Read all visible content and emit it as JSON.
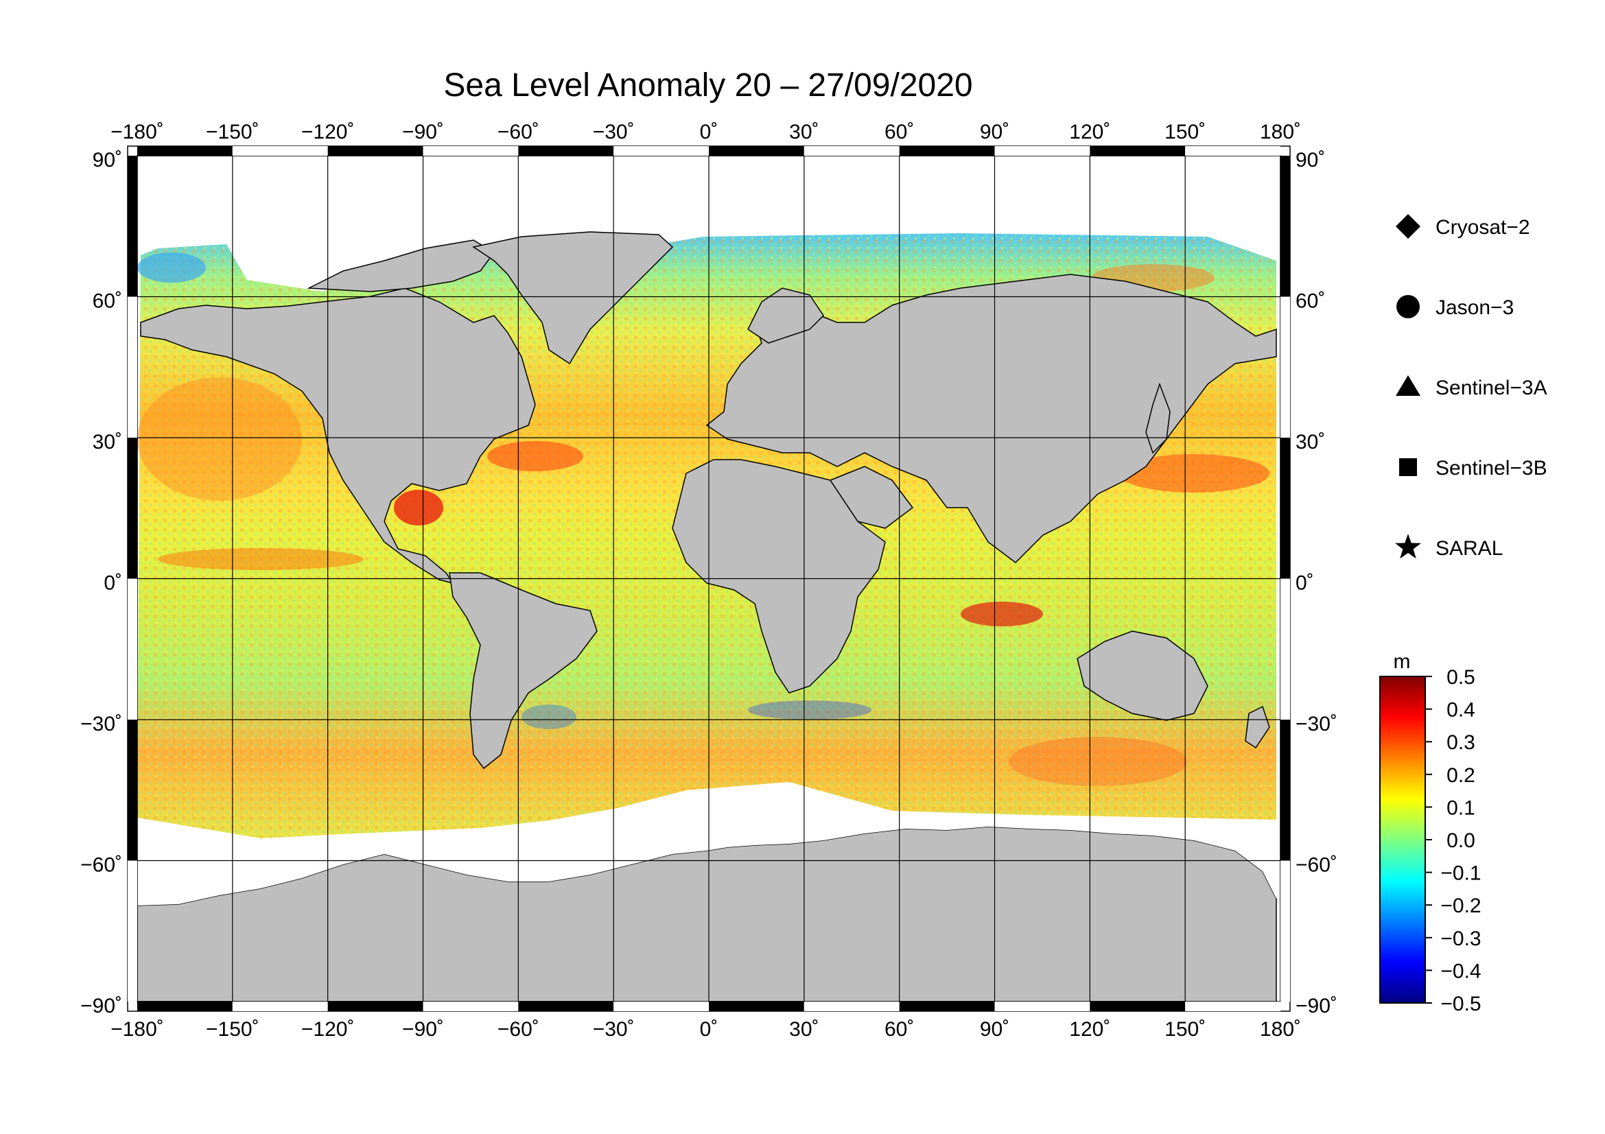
{
  "title": "Sea Level Anomaly 20 – 27/09/2020",
  "map": {
    "projection": "equirectangular",
    "lon_range": [
      -180,
      180
    ],
    "lat_range": [
      -90,
      90
    ],
    "lon_ticks": [
      "−180˚",
      "−150˚",
      "−120˚",
      "−90˚",
      "−60˚",
      "−30˚",
      "0˚",
      "30˚",
      "60˚",
      "90˚",
      "120˚",
      "150˚",
      "180˚"
    ],
    "lat_ticks": [
      "90˚",
      "60˚",
      "30˚",
      "0˚",
      "−30˚",
      "−60˚",
      "−90˚"
    ],
    "grid": true,
    "land_color": "#bebebe",
    "ice_color": "#ffffff"
  },
  "legend": {
    "placement": "right",
    "items": [
      {
        "label": "Cryosat−2",
        "marker": "diamond"
      },
      {
        "label": "Jason−3",
        "marker": "circle"
      },
      {
        "label": "Sentinel−3A",
        "marker": "triangle"
      },
      {
        "label": "Sentinel−3B",
        "marker": "square"
      },
      {
        "label": "SARAL",
        "marker": "star"
      }
    ]
  },
  "colorbar": {
    "unit": "m",
    "ticks": [
      "0.5",
      "0.4",
      "0.3",
      "0.2",
      "0.1",
      "0.0",
      "−0.1",
      "−0.2",
      "−0.3",
      "−0.4",
      "−0.5"
    ],
    "range": [
      -0.5,
      0.5
    ],
    "colors": [
      "#000080",
      "#0000ff",
      "#0080ff",
      "#00ffff",
      "#80ff80",
      "#ffff00",
      "#ff8000",
      "#ff0000",
      "#800000"
    ]
  },
  "chart_data": {
    "type": "heatmap",
    "title": "Sea Level Anomaly 20 – 27/09/2020",
    "xlabel": "",
    "ylabel": "",
    "xlim": [
      -180,
      180
    ],
    "ylim": [
      -90,
      90
    ],
    "colorbar_range": [
      -0.5,
      0.5
    ],
    "colorbar_unit": "m",
    "grid": true,
    "legend_placement": "right"
  }
}
